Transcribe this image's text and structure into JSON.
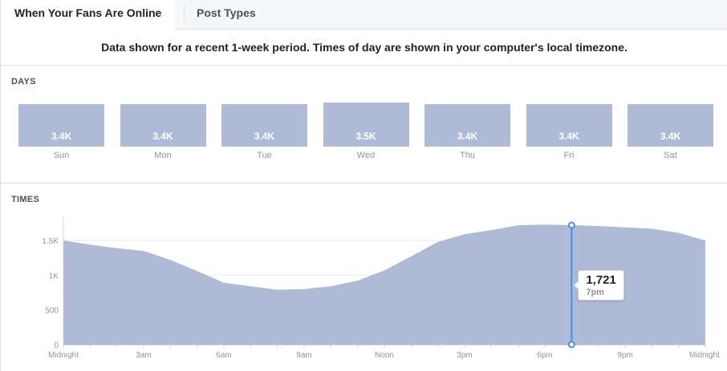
{
  "tabs": [
    {
      "label": "When Your Fans Are Online",
      "active": true
    },
    {
      "label": "Post Types",
      "active": false
    }
  ],
  "notice": "Data shown for a recent 1-week period. Times of day are shown in your computer's local timezone.",
  "days_section": {
    "label": "DAYS"
  },
  "times_section": {
    "label": "TIMES"
  },
  "colors": {
    "fill": "#afbad6",
    "accent": "#4a90e2",
    "grid": "#e9ebee",
    "axis_text": "#90949c"
  },
  "chart_data": [
    {
      "type": "bar",
      "categories": [
        "Sun",
        "Mon",
        "Tue",
        "Wed",
        "Thu",
        "Fri",
        "Sat"
      ],
      "values": [
        3400,
        3400,
        3400,
        3500,
        3400,
        3400,
        3400
      ],
      "value_labels": [
        "3.4K",
        "3.4K",
        "3.4K",
        "3.5K",
        "3.4K",
        "3.4K",
        "3.4K"
      ]
    },
    {
      "type": "area",
      "x": [
        0,
        1,
        2,
        3,
        4,
        5,
        6,
        7,
        8,
        9,
        10,
        11,
        12,
        13,
        14,
        15,
        16,
        17,
        18,
        19,
        20,
        21,
        22,
        23,
        24
      ],
      "y": [
        1500,
        1440,
        1390,
        1350,
        1220,
        1060,
        890,
        840,
        790,
        800,
        840,
        920,
        1070,
        1270,
        1480,
        1590,
        1650,
        1720,
        1730,
        1721,
        1710,
        1690,
        1670,
        1610,
        1500
      ],
      "ylim": [
        0,
        1721
      ],
      "yticks": [
        0,
        500,
        1000,
        1500
      ],
      "ytick_labels": [
        "0",
        "500",
        "1K",
        "1.5K"
      ],
      "xticks": [
        0,
        3,
        6,
        9,
        12,
        15,
        18,
        21,
        24
      ],
      "xtick_labels": [
        "Midnight",
        "3am",
        "6am",
        "9am",
        "Noon",
        "3pm",
        "6pm",
        "9pm",
        "Midnight"
      ],
      "highlight": {
        "x": 19,
        "value_label": "1,721",
        "time_label": "7pm"
      },
      "grid": true
    }
  ]
}
